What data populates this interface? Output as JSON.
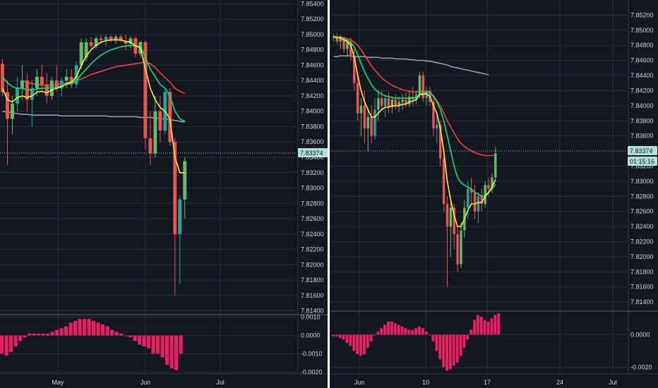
{
  "colors": {
    "background": "#131722",
    "grid": "#2a2e39",
    "axis_text": "#d1d4dc",
    "candle_up": "#26a69a",
    "candle_up_bright": "#66bb6a",
    "candle_down": "#ef5350",
    "ma_yellow": "#ffeb3b",
    "ma_green": "#00e676",
    "ma_red": "#f44336",
    "ma_gray": "#9e9e9e",
    "histogram": "#e91e63",
    "price_tag_bg": "#b2dfdb",
    "divider": "#ffffff"
  },
  "chart_data": [
    {
      "type": "candlestick",
      "panel": "left",
      "y_ticks": [
        "7.85400",
        "7.85200",
        "7.85000",
        "7.84800",
        "7.84600",
        "7.84400",
        "7.84200",
        "7.84000",
        "7.83800",
        "7.83600",
        "7.83400",
        "7.83200",
        "7.83000",
        "7.82800",
        "7.82600",
        "7.82400",
        "7.82200",
        "7.82000",
        "7.81800",
        "7.81600",
        "7.81400"
      ],
      "x_ticks": [
        "May",
        "Jun",
        "Jul"
      ],
      "ylim": [
        7.8135,
        7.8545
      ],
      "current_price": "7.83374",
      "candles": [
        {
          "o": 7.8462,
          "h": 7.8468,
          "l": 7.842,
          "c": 7.8425
        },
        {
          "o": 7.8425,
          "h": 7.844,
          "l": 7.833,
          "c": 7.839
        },
        {
          "o": 7.839,
          "h": 7.842,
          "l": 7.837,
          "c": 7.841
        },
        {
          "o": 7.841,
          "h": 7.8445,
          "l": 7.84,
          "c": 7.843
        },
        {
          "o": 7.843,
          "h": 7.846,
          "l": 7.8415,
          "c": 7.844
        },
        {
          "o": 7.844,
          "h": 7.845,
          "l": 7.84,
          "c": 7.8415
        },
        {
          "o": 7.8415,
          "h": 7.844,
          "l": 7.838,
          "c": 7.843
        },
        {
          "o": 7.843,
          "h": 7.8455,
          "l": 7.842,
          "c": 7.8445
        },
        {
          "o": 7.8445,
          "h": 7.846,
          "l": 7.8425,
          "c": 7.8435
        },
        {
          "o": 7.8435,
          "h": 7.845,
          "l": 7.841,
          "c": 7.842
        },
        {
          "o": 7.842,
          "h": 7.8445,
          "l": 7.8415,
          "c": 7.844
        },
        {
          "o": 7.844,
          "h": 7.846,
          "l": 7.8425,
          "c": 7.843
        },
        {
          "o": 7.843,
          "h": 7.8445,
          "l": 7.842,
          "c": 7.844
        },
        {
          "o": 7.844,
          "h": 7.8455,
          "l": 7.843,
          "c": 7.8445
        },
        {
          "o": 7.8445,
          "h": 7.8455,
          "l": 7.843,
          "c": 7.8435
        },
        {
          "o": 7.8435,
          "h": 7.8465,
          "l": 7.843,
          "c": 7.846
        },
        {
          "o": 7.846,
          "h": 7.8495,
          "l": 7.8455,
          "c": 7.849
        },
        {
          "o": 7.847,
          "h": 7.8495,
          "l": 7.8465,
          "c": 7.849
        },
        {
          "o": 7.849,
          "h": 7.8497,
          "l": 7.848,
          "c": 7.8485
        },
        {
          "o": 7.8485,
          "h": 7.8498,
          "l": 7.8482,
          "c": 7.8495
        },
        {
          "o": 7.8495,
          "h": 7.85,
          "l": 7.8488,
          "c": 7.8493
        },
        {
          "o": 7.8493,
          "h": 7.85,
          "l": 7.8485,
          "c": 7.8497
        },
        {
          "o": 7.8497,
          "h": 7.85,
          "l": 7.849,
          "c": 7.8494
        },
        {
          "o": 7.8494,
          "h": 7.85,
          "l": 7.8488,
          "c": 7.8497
        },
        {
          "o": 7.8497,
          "h": 7.85,
          "l": 7.849,
          "c": 7.8492
        },
        {
          "o": 7.8492,
          "h": 7.85,
          "l": 7.848,
          "c": 7.8488
        },
        {
          "o": 7.8488,
          "h": 7.8498,
          "l": 7.8482,
          "c": 7.8495
        },
        {
          "o": 7.8495,
          "h": 7.8498,
          "l": 7.847,
          "c": 7.8475
        },
        {
          "o": 7.8475,
          "h": 7.8492,
          "l": 7.847,
          "c": 7.849
        },
        {
          "o": 7.849,
          "h": 7.8492,
          "l": 7.835,
          "c": 7.8365
        },
        {
          "o": 7.8365,
          "h": 7.84,
          "l": 7.833,
          "c": 7.8345
        },
        {
          "o": 7.8345,
          "h": 7.842,
          "l": 7.834,
          "c": 7.84
        },
        {
          "o": 7.84,
          "h": 7.842,
          "l": 7.836,
          "c": 7.8375
        },
        {
          "o": 7.8375,
          "h": 7.843,
          "l": 7.837,
          "c": 7.8425
        },
        {
          "o": 7.8425,
          "h": 7.843,
          "l": 7.8355,
          "c": 7.836
        },
        {
          "o": 7.836,
          "h": 7.8365,
          "l": 7.816,
          "c": 7.824
        },
        {
          "o": 7.824,
          "h": 7.829,
          "l": 7.8175,
          "c": 7.8285
        },
        {
          "o": 7.8285,
          "h": 7.834,
          "l": 7.826,
          "c": 7.8335
        }
      ],
      "ma_yellow": [
        7.843,
        7.8415,
        7.8412,
        7.8418,
        7.842,
        7.8418,
        7.842,
        7.8425,
        7.8426,
        7.8424,
        7.8428,
        7.843,
        7.8432,
        7.8436,
        7.8438,
        7.8445,
        7.846,
        7.8472,
        7.848,
        7.8486,
        7.849,
        7.8492,
        7.8493,
        7.8493,
        7.8493,
        7.8491,
        7.849,
        7.8485,
        7.8483,
        7.8455,
        7.843,
        7.8415,
        7.8405,
        7.84,
        7.839,
        7.834,
        7.832,
        7.832
      ],
      "ma_green": [
        7.8445,
        7.8437,
        7.8432,
        7.843,
        7.843,
        7.8428,
        7.8428,
        7.8429,
        7.843,
        7.843,
        7.8431,
        7.8432,
        7.8433,
        7.8435,
        7.8436,
        7.844,
        7.8448,
        7.8455,
        7.8462,
        7.8468,
        7.8473,
        7.8477,
        7.848,
        7.8482,
        7.8484,
        7.8485,
        7.8486,
        7.8485,
        7.8485,
        7.847,
        7.8455,
        7.8445,
        7.8435,
        7.843,
        7.842,
        7.84,
        7.839,
        7.8387
      ],
      "ma_red_x0": 4,
      "ma_red": [
        7.844,
        7.8438,
        7.8436,
        7.8435,
        7.8434,
        7.8434,
        7.8434,
        7.8435,
        7.8436,
        7.8437,
        7.8438,
        7.844,
        7.8442,
        7.8445,
        7.8448,
        7.845,
        7.8452,
        7.8454,
        7.8456,
        7.8458,
        7.8459,
        7.846,
        7.8461,
        7.8462,
        7.8463,
        7.8464,
        7.8462,
        7.8457,
        7.845,
        7.8444,
        7.8438,
        7.843,
        7.8426,
        7.8423
      ],
      "ma_gray": [
        7.84,
        7.8399,
        7.8398,
        7.8397,
        7.8396,
        7.8396,
        7.8395,
        7.8395,
        7.8395,
        7.8395,
        7.8395,
        7.8395,
        7.8394,
        7.8394,
        7.8394,
        7.8394,
        7.8394,
        7.8394,
        7.8394,
        7.8394,
        7.8394,
        7.8394,
        7.8393,
        7.8393,
        7.8393,
        7.8393,
        7.8393,
        7.8393,
        7.8392,
        7.8392,
        7.8392,
        7.8391,
        7.8391,
        7.839,
        7.8389,
        7.8388,
        7.8387,
        7.8386
      ],
      "histogram_ticks": [
        "0.0010",
        "0.0000",
        "-0.0010",
        "-0.0020"
      ],
      "histogram_ylim": [
        -0.0021,
        0.0011
      ],
      "histogram": [
        -0.001,
        -0.0011,
        -0.0009,
        -0.0006,
        -0.0003,
        -0.0001,
        0.0001,
        0.0001,
        0.0001,
        0.0001,
        0.0001,
        0.0002,
        0.0003,
        0.0004,
        0.0005,
        0.0007,
        0.0008,
        0.0009,
        0.0009,
        0.0009,
        0.0008,
        0.0007,
        0.0006,
        0.0005,
        0.0003,
        0.0002,
        0.0001,
        0.0,
        -0.0001,
        -0.0003,
        -0.0005,
        -0.0006,
        -0.0007,
        -0.001,
        -0.001,
        -0.0012,
        -0.0016,
        -0.0018,
        -0.0019,
        -0.001
      ]
    },
    {
      "type": "candlestick",
      "panel": "right",
      "y_ticks": [
        "7.85200",
        "7.85000",
        "7.84800",
        "7.84600",
        "7.84400",
        "7.84200",
        "7.84000",
        "7.83800",
        "7.83600",
        "7.83200",
        "7.83000",
        "7.82800",
        "7.82600",
        "7.82400",
        "7.82200",
        "7.82000",
        "7.81800",
        "7.81600",
        "7.81400"
      ],
      "x_ticks": [
        "Jun",
        "10",
        "17",
        "24",
        "Jul"
      ],
      "ylim": [
        7.8128,
        7.854
      ],
      "current_price": "7.83374",
      "countdown": "01:15:16",
      "candles": [
        {
          "o": 7.849,
          "h": 7.8495,
          "l": 7.8485,
          "c": 7.8492
        },
        {
          "o": 7.8492,
          "h": 7.8496,
          "l": 7.8482,
          "c": 7.8485
        },
        {
          "o": 7.8485,
          "h": 7.8494,
          "l": 7.8475,
          "c": 7.849
        },
        {
          "o": 7.849,
          "h": 7.8492,
          "l": 7.847,
          "c": 7.8475
        },
        {
          "o": 7.8475,
          "h": 7.8488,
          "l": 7.8465,
          "c": 7.8485
        },
        {
          "o": 7.8485,
          "h": 7.849,
          "l": 7.846,
          "c": 7.8465
        },
        {
          "o": 7.8465,
          "h": 7.8475,
          "l": 7.842,
          "c": 7.843
        },
        {
          "o": 7.843,
          "h": 7.8445,
          "l": 7.838,
          "c": 7.839
        },
        {
          "o": 7.839,
          "h": 7.841,
          "l": 7.836,
          "c": 7.84
        },
        {
          "o": 7.84,
          "h": 7.842,
          "l": 7.835,
          "c": 7.837
        },
        {
          "o": 7.837,
          "h": 7.8395,
          "l": 7.834,
          "c": 7.8385
        },
        {
          "o": 7.8385,
          "h": 7.84,
          "l": 7.835,
          "c": 7.836
        },
        {
          "o": 7.836,
          "h": 7.841,
          "l": 7.8355,
          "c": 7.8395
        },
        {
          "o": 7.8395,
          "h": 7.842,
          "l": 7.838,
          "c": 7.841
        },
        {
          "o": 7.841,
          "h": 7.842,
          "l": 7.8395,
          "c": 7.84
        },
        {
          "o": 7.84,
          "h": 7.8415,
          "l": 7.8385,
          "c": 7.841
        },
        {
          "o": 7.841,
          "h": 7.8418,
          "l": 7.839,
          "c": 7.8398
        },
        {
          "o": 7.8398,
          "h": 7.8412,
          "l": 7.839,
          "c": 7.8408
        },
        {
          "o": 7.8408,
          "h": 7.8415,
          "l": 7.8395,
          "c": 7.84
        },
        {
          "o": 7.84,
          "h": 7.8412,
          "l": 7.8392,
          "c": 7.8405
        },
        {
          "o": 7.8405,
          "h": 7.8415,
          "l": 7.8395,
          "c": 7.8408
        },
        {
          "o": 7.8408,
          "h": 7.8418,
          "l": 7.8398,
          "c": 7.8402
        },
        {
          "o": 7.8402,
          "h": 7.842,
          "l": 7.8398,
          "c": 7.8412
        },
        {
          "o": 7.8412,
          "h": 7.8425,
          "l": 7.84,
          "c": 7.8408
        },
        {
          "o": 7.8408,
          "h": 7.842,
          "l": 7.8402,
          "c": 7.8415
        },
        {
          "o": 7.8415,
          "h": 7.8445,
          "l": 7.841,
          "c": 7.844
        },
        {
          "o": 7.844,
          "h": 7.8445,
          "l": 7.8405,
          "c": 7.841
        },
        {
          "o": 7.841,
          "h": 7.8425,
          "l": 7.84,
          "c": 7.842
        },
        {
          "o": 7.842,
          "h": 7.8425,
          "l": 7.84,
          "c": 7.8405
        },
        {
          "o": 7.8405,
          "h": 7.841,
          "l": 7.836,
          "c": 7.837
        },
        {
          "o": 7.837,
          "h": 7.839,
          "l": 7.835,
          "c": 7.8375
        },
        {
          "o": 7.8375,
          "h": 7.838,
          "l": 7.832,
          "c": 7.833
        },
        {
          "o": 7.833,
          "h": 7.8345,
          "l": 7.826,
          "c": 7.827
        },
        {
          "o": 7.827,
          "h": 7.828,
          "l": 7.816,
          "c": 7.824
        },
        {
          "o": 7.824,
          "h": 7.8275,
          "l": 7.82,
          "c": 7.8265
        },
        {
          "o": 7.8265,
          "h": 7.827,
          "l": 7.821,
          "c": 7.823
        },
        {
          "o": 7.823,
          "h": 7.824,
          "l": 7.818,
          "c": 7.819
        },
        {
          "o": 7.819,
          "h": 7.8245,
          "l": 7.8185,
          "c": 7.8235
        },
        {
          "o": 7.8235,
          "h": 7.8275,
          "l": 7.8225,
          "c": 7.8265
        },
        {
          "o": 7.8265,
          "h": 7.83,
          "l": 7.825,
          "c": 7.829
        },
        {
          "o": 7.829,
          "h": 7.8305,
          "l": 7.827,
          "c": 7.8285
        },
        {
          "o": 7.8285,
          "h": 7.8295,
          "l": 7.825,
          "c": 7.826
        },
        {
          "o": 7.826,
          "h": 7.8285,
          "l": 7.8245,
          "c": 7.828
        },
        {
          "o": 7.828,
          "h": 7.829,
          "l": 7.826,
          "c": 7.827
        },
        {
          "o": 7.827,
          "h": 7.83,
          "l": 7.8265,
          "c": 7.8295
        },
        {
          "o": 7.8295,
          "h": 7.8305,
          "l": 7.828,
          "c": 7.829
        },
        {
          "o": 7.829,
          "h": 7.831,
          "l": 7.8285,
          "c": 7.8305
        },
        {
          "o": 7.8305,
          "h": 7.8345,
          "l": 7.83,
          "c": 7.8337
        }
      ],
      "ma_yellow": [
        7.8491,
        7.849,
        7.849,
        7.8487,
        7.8485,
        7.848,
        7.8465,
        7.844,
        7.842,
        7.8405,
        7.8395,
        7.8385,
        7.8385,
        7.839,
        7.8395,
        7.8398,
        7.8398,
        7.84,
        7.84,
        7.84,
        7.8402,
        7.8402,
        7.8405,
        7.8406,
        7.8408,
        7.8415,
        7.8415,
        7.8416,
        7.8412,
        7.84,
        7.839,
        7.837,
        7.834,
        7.83,
        7.8275,
        7.8255,
        7.824,
        7.824,
        7.825,
        7.8262,
        7.827,
        7.827,
        7.8272,
        7.8272,
        7.828,
        7.8285,
        7.8292,
        7.8302
      ],
      "ma_green": [
        7.8492,
        7.8491,
        7.849,
        7.8488,
        7.8487,
        7.8484,
        7.8478,
        7.8468,
        7.8456,
        7.8445,
        7.8436,
        7.8428,
        7.8422,
        7.8418,
        7.8415,
        7.8413,
        7.8412,
        7.8411,
        7.841,
        7.841,
        7.841,
        7.841,
        7.841,
        7.841,
        7.8411,
        7.8415,
        7.8417,
        7.8418,
        7.8418,
        7.8412,
        7.8405,
        7.8395,
        7.838,
        7.836,
        7.834,
        7.832,
        7.8305,
        7.8298,
        7.8295,
        7.8292,
        7.829,
        7.8285,
        7.8283,
        7.828,
        7.8282,
        7.8285,
        7.829,
        7.8296
      ],
      "ma_red": [
        7.8492,
        7.8491,
        7.8491,
        7.849,
        7.8489,
        7.8487,
        7.8484,
        7.848,
        7.8474,
        7.8467,
        7.846,
        7.8453,
        7.8447,
        7.8442,
        7.8437,
        7.8433,
        7.843,
        7.8427,
        7.8425,
        7.8423,
        7.8421,
        7.842,
        7.8419,
        7.8418,
        7.8418,
        7.8419,
        7.8419,
        7.8419,
        7.8418,
        7.8413,
        7.8407,
        7.84,
        7.839,
        7.838,
        7.8372,
        7.8364,
        7.8356,
        7.835,
        7.8346,
        7.8343,
        7.834,
        7.8338,
        7.8336,
        7.8335,
        7.8334,
        7.8334,
        7.8334,
        7.8335
      ],
      "ma_gray": [
        7.8465,
        7.8465,
        7.8466,
        7.8466,
        7.8466,
        7.8466,
        7.8465,
        7.8465,
        7.8465,
        7.8465,
        7.8464,
        7.8464,
        7.8464,
        7.8464,
        7.8463,
        7.8463,
        7.8463,
        7.8463,
        7.8462,
        7.8462,
        7.8462,
        7.8462,
        7.8461,
        7.8461,
        7.846,
        7.846,
        7.846,
        7.8459,
        7.8459,
        7.8458,
        7.8457,
        7.8456,
        7.8455,
        7.8454,
        7.8452,
        7.8451,
        7.845,
        7.8449,
        7.8448,
        7.8447,
        7.8446,
        7.8445,
        7.8444,
        7.8443,
        7.8442,
        7.8441
      ],
      "histogram_ticks": [
        "0.0000",
        "-0.0020"
      ],
      "histogram_ylim": [
        -0.0024,
        0.0014
      ],
      "histogram": [
        -0.0001,
        -0.0001,
        -0.0002,
        -0.0003,
        -0.0005,
        -0.0007,
        -0.001,
        -0.0012,
        -0.0013,
        -0.0012,
        -0.0008,
        -0.0004,
        0.0,
        0.0002,
        0.0004,
        0.0006,
        0.0008,
        0.0008,
        0.0007,
        0.0006,
        0.0005,
        0.0004,
        0.0003,
        0.0003,
        0.0004,
        0.0005,
        0.0004,
        0.0002,
        0.0,
        -0.0004,
        -0.001,
        -0.0015,
        -0.002,
        -0.0022,
        -0.0021,
        -0.0019,
        -0.0017,
        -0.0013,
        -0.0008,
        -0.0003,
        0.0003,
        0.0009,
        0.0012,
        0.0011,
        0.0009,
        0.0008,
        0.001,
        0.0012,
        0.0013
      ]
    }
  ]
}
